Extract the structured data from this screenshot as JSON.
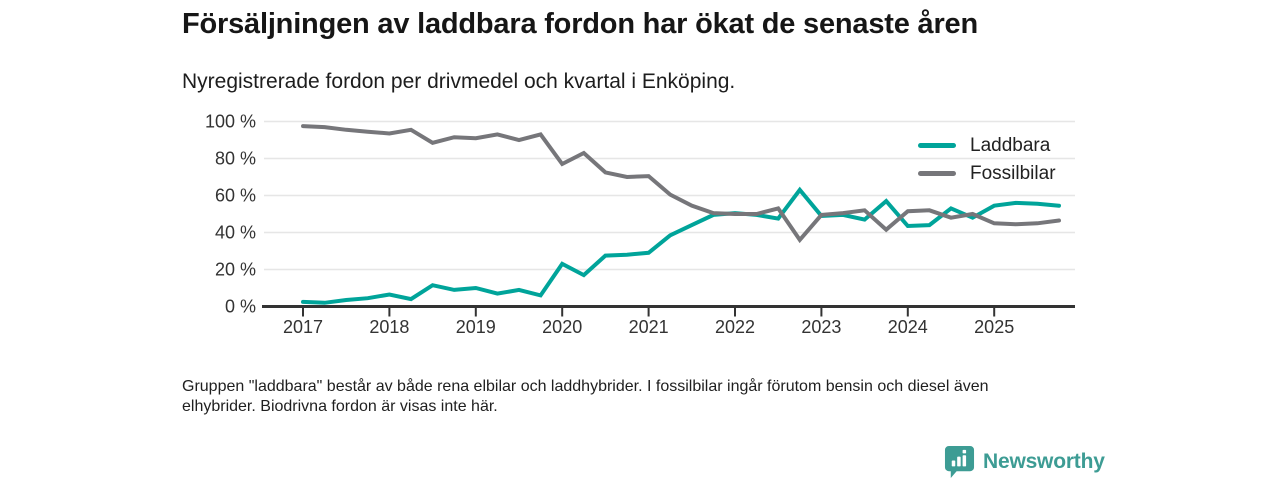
{
  "header": {
    "title": "Försäljningen av laddbara fordon har ökat de senaste åren",
    "subtitle": "Nyregistrerade fordon per drivmedel och kvartal i Enköping."
  },
  "legend": [
    {
      "label": "Laddbara",
      "color": "#00a49a"
    },
    {
      "label": "Fossilbilar",
      "color": "#76767a"
    }
  ],
  "footer": {
    "note": "Gruppen \"laddbara\" består av både rena elbilar och laddhybrider. I fossilbilar ingår förutom bensin och diesel även\nelhybrider. Biodrivna fordon är visas inte här."
  },
  "branding": {
    "name": "Newsworthy",
    "color": "#3d9c94"
  },
  "chart_data": {
    "type": "line",
    "title": "Nyregistrerade fordon per drivmedel och kvartal i Enköping",
    "x_unit": "quarter",
    "ylim": [
      0,
      100
    ],
    "grid": "horizontal",
    "legend_position": "top-right-inside",
    "categories": [
      "2017 Q1",
      "2017 Q2",
      "2017 Q3",
      "2017 Q4",
      "2018 Q1",
      "2018 Q2",
      "2018 Q3",
      "2018 Q4",
      "2019 Q1",
      "2019 Q2",
      "2019 Q3",
      "2019 Q4",
      "2020 Q1",
      "2020 Q2",
      "2020 Q3",
      "2020 Q4",
      "2021 Q1",
      "2021 Q2",
      "2021 Q3",
      "2021 Q4",
      "2022 Q1",
      "2022 Q2",
      "2022 Q3",
      "2022 Q4",
      "2023 Q1",
      "2023 Q2",
      "2023 Q3",
      "2023 Q4",
      "2024 Q1",
      "2024 Q2",
      "2024 Q3",
      "2024 Q4",
      "2025 Q1",
      "2025 Q2",
      "2025 Q3",
      "2025 Q4"
    ],
    "series": [
      {
        "name": "Laddbara",
        "color": "#00a49a",
        "values": [
          2.5,
          2,
          3.5,
          4.5,
          6.5,
          4,
          11.5,
          9,
          10,
          7,
          9,
          6,
          23,
          17,
          27.5,
          28,
          29,
          38.5,
          44,
          49.5,
          50.5,
          49.5,
          47.5,
          63,
          49,
          49.5,
          47,
          57,
          43.5,
          44,
          53,
          48,
          54.5,
          56,
          55.5,
          54.5
        ]
      },
      {
        "name": "Fossilbilar",
        "color": "#76767a",
        "values": [
          97.5,
          97,
          95.5,
          94.5,
          93.5,
          95.5,
          88.5,
          91.5,
          91,
          93,
          90,
          93,
          77,
          83,
          72.5,
          70,
          70.5,
          60.5,
          54.5,
          50.5,
          50,
          50,
          53,
          36,
          49.5,
          50.5,
          52,
          41.5,
          51.5,
          52,
          48,
          50,
          45,
          44.5,
          45,
          46.5
        ]
      }
    ],
    "yticks": [
      {
        "value": 0,
        "label": "0 %"
      },
      {
        "value": 20,
        "label": "20 %"
      },
      {
        "value": 40,
        "label": "40 %"
      },
      {
        "value": 60,
        "label": "60 %"
      },
      {
        "value": 80,
        "label": "80 %"
      },
      {
        "value": 100,
        "label": "100 %"
      }
    ],
    "xticks": [
      {
        "index": 0,
        "label": "2017"
      },
      {
        "index": 4,
        "label": "2018"
      },
      {
        "index": 8,
        "label": "2019"
      },
      {
        "index": 12,
        "label": "2020"
      },
      {
        "index": 16,
        "label": "2021"
      },
      {
        "index": 20,
        "label": "2022"
      },
      {
        "index": 24,
        "label": "2023"
      },
      {
        "index": 28,
        "label": "2024"
      },
      {
        "index": 32,
        "label": "2025"
      }
    ]
  }
}
